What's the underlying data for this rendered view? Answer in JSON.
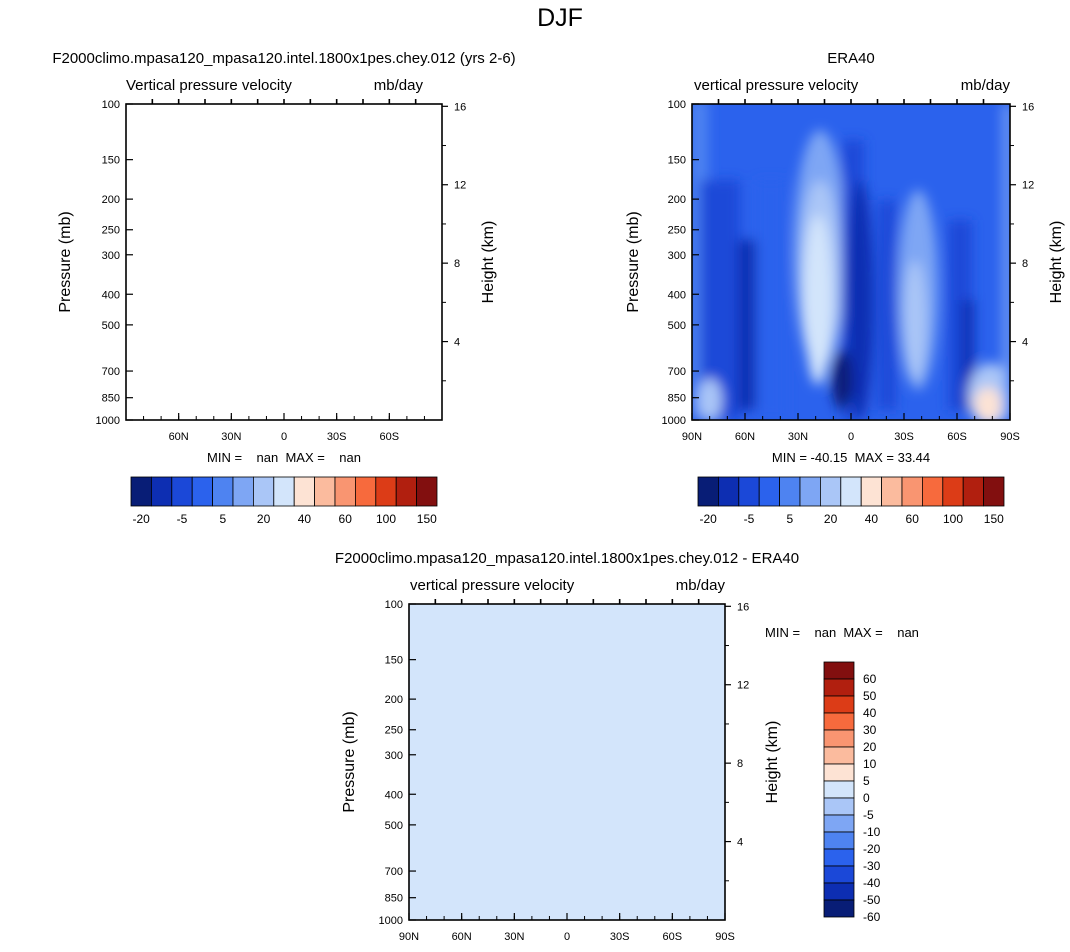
{
  "page": {
    "title": "DJF"
  },
  "panels": [
    {
      "title": "F2000climo.mpasa120_mpasa120.intel.1800x1pes.chey.012 (yrs 2-6)",
      "left_label": "Vertical pressure velocity",
      "right_label": "mb/day",
      "ylabel": "Pressure (mb)",
      "y2label": "Height (km)",
      "stats_text": "MIN =    nan  MAX =    nan",
      "fill": "#ffffff"
    },
    {
      "title": "ERA40",
      "left_label": "vertical pressure velocity",
      "right_label": "mb/day",
      "ylabel": "Pressure (mb)",
      "y2label": "Height (km)",
      "stats_text": "MIN = -40.15  MAX = 33.44"
    },
    {
      "title": "F2000climo.mpasa120_mpasa120.intel.1800x1pes.chey.012 - ERA40",
      "left_label": "vertical pressure velocity",
      "right_label": "mb/day",
      "ylabel": "Pressure (mb)",
      "y2label": "Height (km)",
      "stats_text": "MIN =    nan  MAX =    nan",
      "fill": "#d3e5fb"
    }
  ],
  "colorbars": {
    "main": {
      "orientation": "horizontal",
      "colors": [
        "#081d76",
        "#0d2eb2",
        "#1b48d8",
        "#2b62ed",
        "#4e83f1",
        "#7ea6f4",
        "#aac6f7",
        "#d3e5fb",
        "#fde3d4",
        "#fbbb9e",
        "#f99571",
        "#f76a3d",
        "#dc3c17",
        "#b11f0f",
        "#820f0f"
      ],
      "labels": [
        "-20",
        "-5",
        "5",
        "20",
        "40",
        "60",
        "100",
        "150"
      ]
    },
    "diff": {
      "orientation": "vertical",
      "colors": [
        "#081d76",
        "#0d2eb2",
        "#1b48d8",
        "#2b62ed",
        "#4e83f1",
        "#7ea6f4",
        "#aac6f7",
        "#d3e5fb",
        "#fde3d4",
        "#fbbb9e",
        "#f99571",
        "#f76a3d",
        "#dc3c17",
        "#b11f0f",
        "#820f0f"
      ],
      "labels": [
        "60",
        "50",
        "40",
        "30",
        "20",
        "10",
        "5",
        "0",
        "-5",
        "-10",
        "-20",
        "-30",
        "-40",
        "-50",
        "-60"
      ]
    }
  },
  "chart_data": [
    {
      "type": "heatmap",
      "title": "F2000climo.mpasa120_mpasa120.intel.1800x1pes.chey.012 (yrs 2-6)",
      "field": "Vertical pressure velocity",
      "units": "mb/day",
      "ylabel": "Pressure (mb)",
      "y2label": "Height (km)",
      "x_ticks": [
        "60N",
        "30N",
        "0",
        "30S",
        "60S"
      ],
      "y_ticks": [
        "100",
        "150",
        "200",
        "250",
        "300",
        "400",
        "500",
        "700",
        "850",
        "1000"
      ],
      "y2_ticks": [
        "16",
        "12",
        "8",
        "4"
      ],
      "ylim": [
        1000,
        100
      ],
      "min": "nan",
      "max": "nan",
      "values": "nan"
    },
    {
      "type": "heatmap",
      "title": "ERA40",
      "field": "vertical pressure velocity",
      "units": "mb/day",
      "ylabel": "Pressure (mb)",
      "y2label": "Height (km)",
      "x_ticks": [
        "90N",
        "60N",
        "30N",
        "0",
        "30S",
        "60S",
        "90S"
      ],
      "xlim": [
        90,
        -90
      ],
      "y_ticks": [
        "100",
        "150",
        "200",
        "250",
        "300",
        "400",
        "500",
        "700",
        "850",
        "1000"
      ],
      "y2_ticks": [
        "16",
        "12",
        "8",
        "4"
      ],
      "ylim": [
        1000,
        100
      ],
      "min": -40.15,
      "max": 33.44,
      "features": [
        {
          "lat_center": 22,
          "lat_width": 14,
          "level_top": 160,
          "value": 15
        },
        {
          "lat_center": -4,
          "lat_width": 12,
          "level_top": 150,
          "value": -30
        },
        {
          "lat_center": -38,
          "lat_width": 10,
          "level_top": 200,
          "value": 10
        },
        {
          "lat_center": -65,
          "lat_width": 14,
          "level_top": 700,
          "value": 30
        }
      ]
    },
    {
      "type": "heatmap",
      "title": "F2000climo.mpasa120_mpasa120.intel.1800x1pes.chey.012 - ERA40",
      "field": "vertical pressure velocity",
      "units": "mb/day",
      "ylabel": "Pressure (mb)",
      "y2label": "Height (km)",
      "x_ticks": [
        "90N",
        "60N",
        "30N",
        "0",
        "30S",
        "60S",
        "90S"
      ],
      "y_ticks": [
        "100",
        "150",
        "200",
        "250",
        "300",
        "400",
        "500",
        "700",
        "850",
        "1000"
      ],
      "y2_ticks": [
        "16",
        "12",
        "8",
        "4"
      ],
      "ylim": [
        1000,
        100
      ],
      "min": "nan",
      "max": "nan"
    }
  ]
}
